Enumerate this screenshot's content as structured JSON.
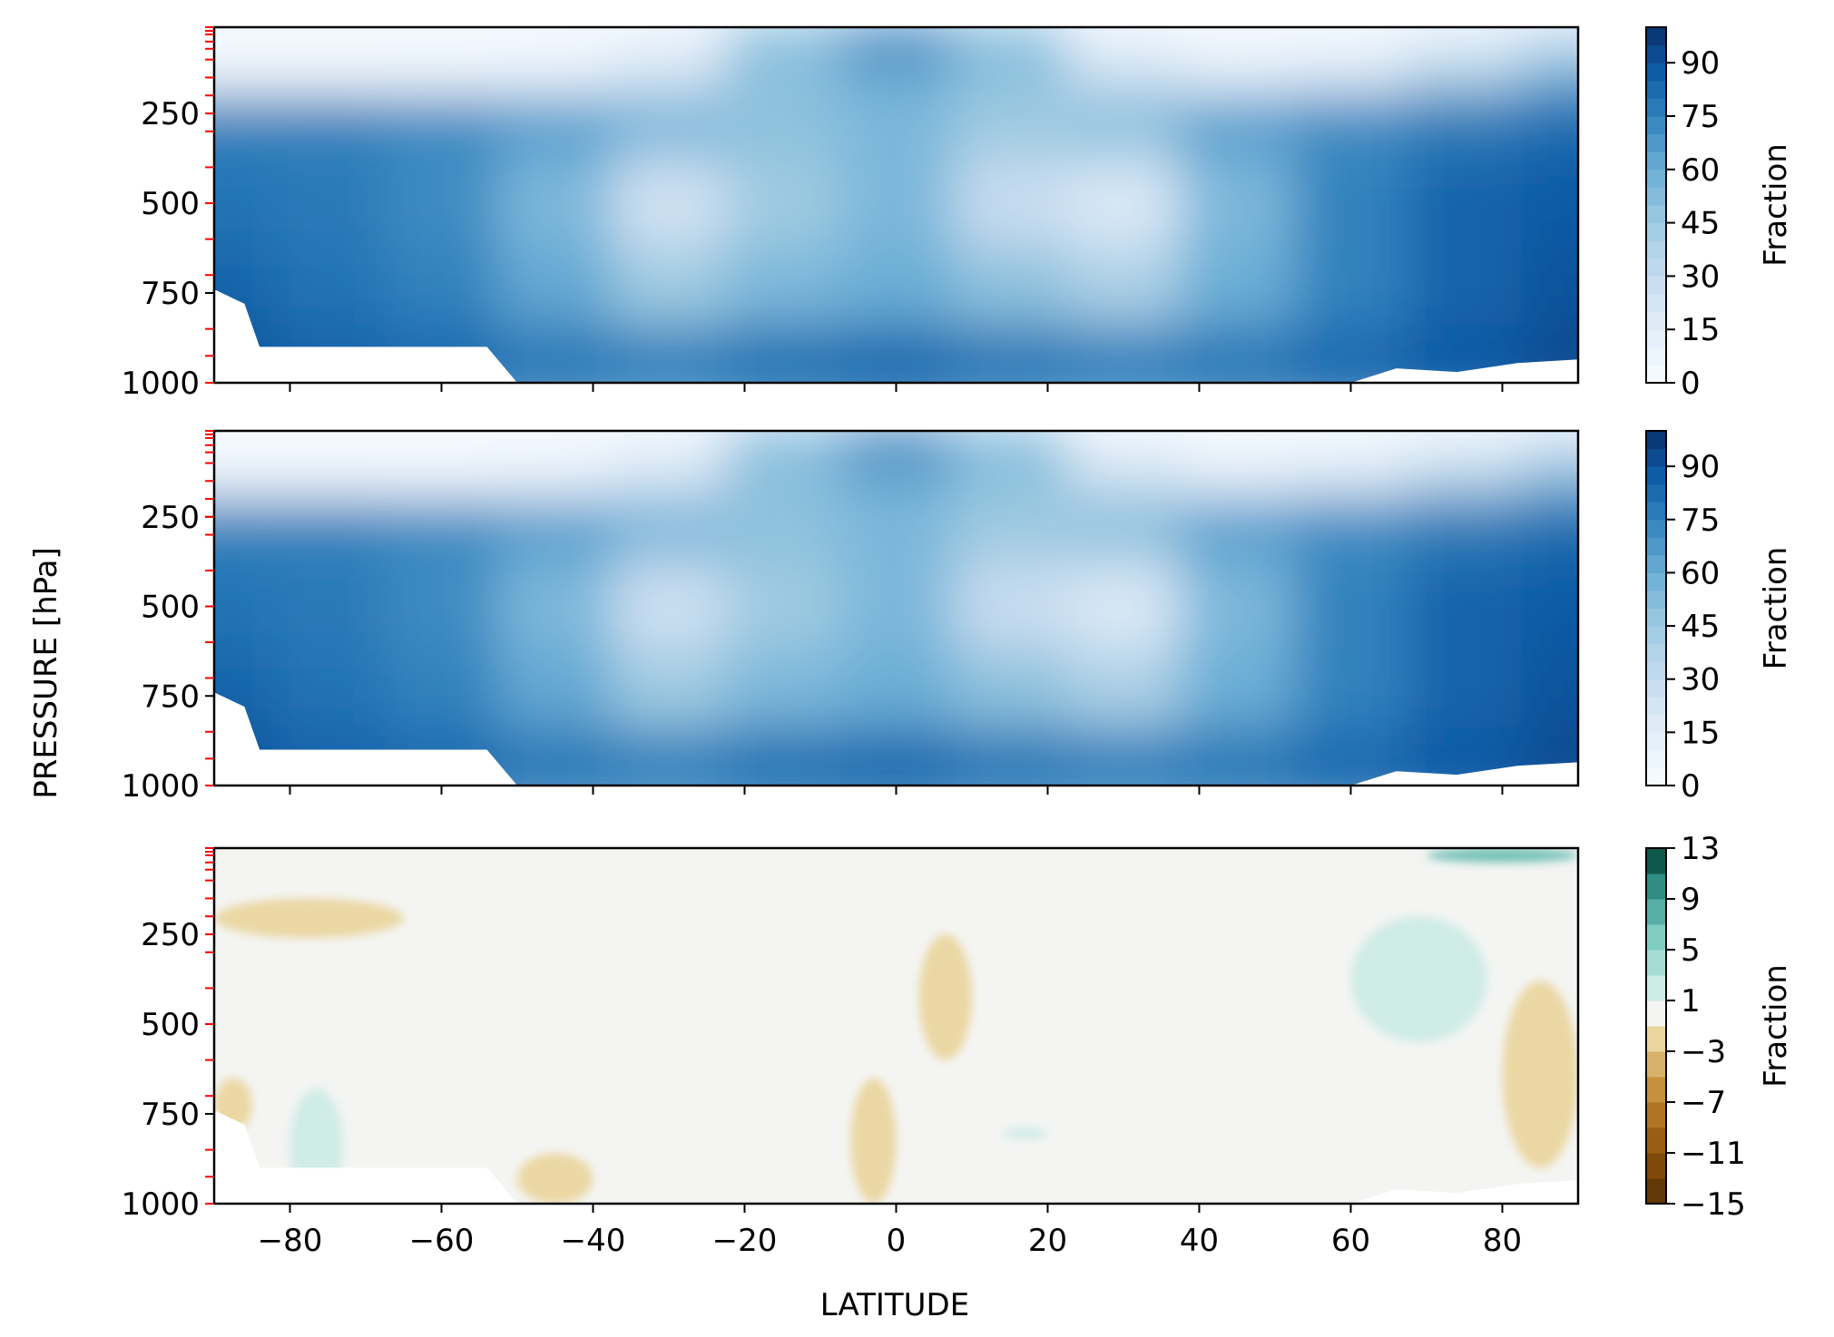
{
  "figure": {
    "ylabel": "PRESSURE [hPa]",
    "xlabel": "LATITUDE"
  },
  "chart_data": [
    {
      "type": "heatmap",
      "title": "",
      "xlabel": "",
      "ylabel": "",
      "xlim": [
        -90,
        90
      ],
      "ylim": [
        1000,
        10
      ],
      "xticks": [
        -80,
        -60,
        -40,
        -20,
        0,
        20,
        40,
        60,
        80
      ],
      "yticks": [
        "250",
        "500",
        "750",
        "1000"
      ],
      "ytick_values": [
        250,
        500,
        750,
        1000
      ],
      "pressure_levels": [
        10,
        20,
        30,
        50,
        70,
        100,
        150,
        200,
        250,
        300,
        400,
        500,
        600,
        700,
        850,
        925,
        1000
      ],
      "colormap": "Blues",
      "colorbar": {
        "label": "Fraction",
        "range": [
          0,
          100
        ],
        "ticks": [
          "0",
          "15",
          "30",
          "45",
          "60",
          "75",
          "90"
        ],
        "tick_values": [
          0,
          15,
          30,
          45,
          60,
          75,
          90
        ]
      },
      "latitudes": [
        -90,
        -75,
        -60,
        -45,
        -30,
        -15,
        0,
        15,
        30,
        45,
        60,
        75,
        90
      ],
      "values_by_level": {
        "50": [
          2,
          2,
          2,
          3,
          8,
          55,
          80,
          55,
          8,
          4,
          5,
          15,
          30
        ],
        "150": [
          5,
          5,
          5,
          10,
          25,
          50,
          60,
          50,
          30,
          15,
          20,
          40,
          60
        ],
        "250": [
          75,
          75,
          72,
          65,
          55,
          50,
          55,
          45,
          50,
          65,
          72,
          78,
          82
        ],
        "500": [
          80,
          78,
          72,
          55,
          25,
          45,
          55,
          30,
          20,
          55,
          75,
          85,
          88
        ],
        "750": [
          85,
          80,
          75,
          62,
          45,
          55,
          60,
          50,
          40,
          60,
          75,
          85,
          90
        ],
        "925": [
          90,
          85,
          82,
          78,
          75,
          80,
          82,
          78,
          75,
          78,
          82,
          88,
          92
        ]
      }
    },
    {
      "type": "heatmap",
      "title": "",
      "xlabel": "",
      "ylabel": "",
      "xlim": [
        -90,
        90
      ],
      "ylim": [
        1000,
        10
      ],
      "xticks": [
        -80,
        -60,
        -40,
        -20,
        0,
        20,
        40,
        60,
        80
      ],
      "yticks": [
        "250",
        "500",
        "750",
        "1000"
      ],
      "ytick_values": [
        250,
        500,
        750,
        1000
      ],
      "pressure_levels": [
        10,
        20,
        30,
        50,
        70,
        100,
        150,
        200,
        250,
        300,
        400,
        500,
        600,
        700,
        850,
        925,
        1000
      ],
      "colormap": "Blues",
      "colorbar": {
        "label": "Fraction",
        "range": [
          0,
          100
        ],
        "ticks": [
          "0",
          "15",
          "30",
          "45",
          "60",
          "75",
          "90"
        ],
        "tick_values": [
          0,
          15,
          30,
          45,
          60,
          75,
          90
        ]
      },
      "latitudes": [
        -90,
        -75,
        -60,
        -45,
        -30,
        -15,
        0,
        15,
        30,
        45,
        60,
        75,
        90
      ],
      "values_by_level": {
        "50": [
          2,
          2,
          2,
          3,
          8,
          55,
          80,
          55,
          8,
          4,
          5,
          12,
          25
        ],
        "150": [
          5,
          5,
          5,
          10,
          25,
          50,
          60,
          50,
          30,
          15,
          20,
          38,
          55
        ],
        "250": [
          75,
          75,
          72,
          65,
          55,
          50,
          55,
          45,
          50,
          65,
          72,
          78,
          82
        ],
        "500": [
          80,
          78,
          72,
          55,
          27,
          45,
          55,
          30,
          20,
          55,
          75,
          85,
          88
        ],
        "750": [
          85,
          80,
          75,
          62,
          45,
          55,
          60,
          50,
          40,
          60,
          75,
          85,
          90
        ],
        "925": [
          90,
          85,
          82,
          78,
          75,
          80,
          82,
          78,
          75,
          78,
          82,
          88,
          92
        ]
      }
    },
    {
      "type": "heatmap",
      "title": "",
      "xlabel": "LATITUDE",
      "ylabel": "",
      "xlim": [
        -90,
        90
      ],
      "ylim": [
        1000,
        10
      ],
      "xticks": [
        -80,
        -60,
        -40,
        -20,
        0,
        20,
        40,
        60,
        80
      ],
      "xtick_labels": [
        "−80",
        "−60",
        "−40",
        "−20",
        "0",
        "20",
        "40",
        "60",
        "80"
      ],
      "yticks": [
        "250",
        "500",
        "750",
        "1000"
      ],
      "ytick_values": [
        250,
        500,
        750,
        1000
      ],
      "colormap": "BrBG",
      "colorbar": {
        "label": "Fraction",
        "range": [
          -15,
          13
        ],
        "ticks": [
          "−15",
          "−11",
          "−7",
          "−3",
          "1",
          "5",
          "9",
          "13"
        ],
        "tick_values": [
          -15,
          -11,
          -7,
          -3,
          1,
          5,
          9,
          13
        ]
      },
      "background_value": 0,
      "features": [
        {
          "kind": "positive",
          "lat_range": [
            70,
            90
          ],
          "pressure_range": [
            10,
            50
          ],
          "value": 7
        },
        {
          "kind": "negative",
          "lat_range": [
            -90,
            -65
          ],
          "pressure_range": [
            150,
            260
          ],
          "value": -2
        },
        {
          "kind": "positive",
          "lat_range": [
            60,
            78
          ],
          "pressure_range": [
            200,
            550
          ],
          "value": 2
        },
        {
          "kind": "negative",
          "lat_range": [
            3,
            10
          ],
          "pressure_range": [
            250,
            600
          ],
          "value": -2
        },
        {
          "kind": "negative",
          "lat_range": [
            80,
            90
          ],
          "pressure_range": [
            380,
            900
          ],
          "value": -2
        },
        {
          "kind": "negative",
          "lat_range": [
            -6,
            0
          ],
          "pressure_range": [
            650,
            1000
          ],
          "value": -2
        },
        {
          "kind": "negative",
          "lat_range": [
            -90,
            -85
          ],
          "pressure_range": [
            650,
            800
          ],
          "value": -2
        },
        {
          "kind": "positive",
          "lat_range": [
            -80,
            -73
          ],
          "pressure_range": [
            680,
            1000
          ],
          "value": 2
        },
        {
          "kind": "negative",
          "lat_range": [
            -50,
            -40
          ],
          "pressure_range": [
            860,
            1000
          ],
          "value": -2
        },
        {
          "kind": "positive",
          "lat_range": [
            14,
            20
          ],
          "pressure_range": [
            790,
            820
          ],
          "value": 2
        }
      ]
    }
  ]
}
